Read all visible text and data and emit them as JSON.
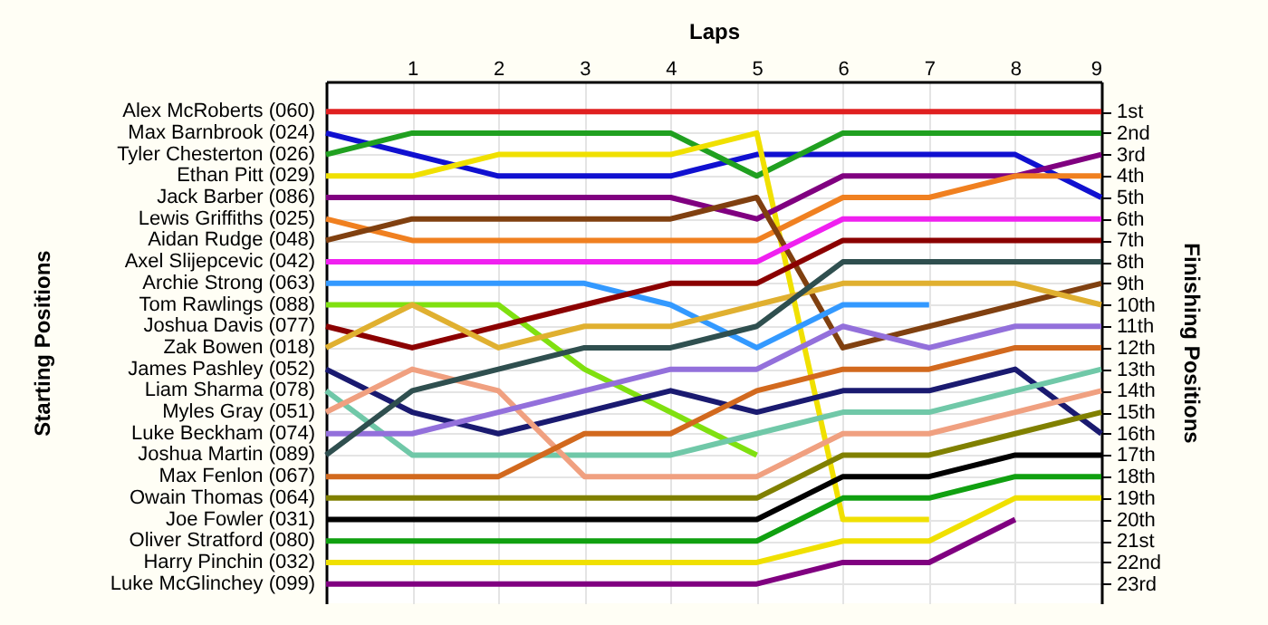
{
  "chart_data": {
    "type": "line",
    "xlabel": "Laps",
    "ylabel": "Finishing Positions",
    "annotations": [
      "Starting Positions"
    ],
    "x": [
      0,
      1,
      2,
      3,
      4,
      5,
      6,
      7,
      8,
      9
    ],
    "xlim": [
      0,
      9
    ],
    "xticks": [
      {
        "value": 0,
        "label": null
      },
      1,
      2,
      3,
      4,
      5,
      6,
      7,
      8,
      9
    ],
    "ylim": [
      23.9,
      -0.4
    ],
    "yticks": [
      {
        "value": 1,
        "label": "1st"
      },
      {
        "value": 2,
        "label": "2nd"
      },
      {
        "value": 3,
        "label": "3rd"
      },
      {
        "value": 4,
        "label": "4th"
      },
      {
        "value": 5,
        "label": "5th"
      },
      {
        "value": 6,
        "label": "6th"
      },
      {
        "value": 7,
        "label": "7th"
      },
      {
        "value": 8,
        "label": "8th"
      },
      {
        "value": 9,
        "label": "9th"
      },
      {
        "value": 10,
        "label": "10th"
      },
      {
        "value": 11,
        "label": "11th"
      },
      {
        "value": 12,
        "label": "12th"
      },
      {
        "value": 13,
        "label": "13th"
      },
      {
        "value": 14,
        "label": "14th"
      },
      {
        "value": 15,
        "label": "15th"
      },
      {
        "value": 16,
        "label": "16th"
      },
      {
        "value": 17,
        "label": "17th"
      },
      {
        "value": 18,
        "label": "18th"
      },
      {
        "value": 19,
        "label": "19th"
      },
      {
        "value": 20,
        "label": "20th"
      },
      {
        "value": 21,
        "label": "21st"
      },
      {
        "value": 22,
        "label": "22nd"
      },
      {
        "value": 23,
        "label": "23rd"
      }
    ],
    "grid": true,
    "marker": "none",
    "line_style": "solid",
    "series": [
      {
        "name": "Alex McRoberts (060)",
        "color": "#e02020",
        "values": [
          1,
          1,
          1,
          1,
          1,
          1,
          1,
          1,
          1,
          1
        ]
      },
      {
        "name": "Max Barnbrook (024)",
        "color": "#1010d0",
        "values": [
          2,
          3,
          4,
          4,
          4,
          3,
          3,
          3,
          3,
          5
        ]
      },
      {
        "name": "Tyler Chesterton (026)",
        "color": "#20a020",
        "values": [
          3,
          2,
          2,
          2,
          2,
          4,
          2,
          2,
          2,
          2
        ]
      },
      {
        "name": "Ethan Pitt (029)",
        "color": "#f0e000",
        "values": [
          4,
          4,
          3,
          3,
          3,
          2,
          20,
          20,
          null,
          null
        ]
      },
      {
        "name": "Jack Barber (086)",
        "color": "#800080",
        "values": [
          5,
          5,
          5,
          5,
          5,
          6,
          4,
          4,
          4,
          3
        ]
      },
      {
        "name": "Lewis Griffiths (025)",
        "color": "#f08020",
        "values": [
          6,
          7,
          7,
          7,
          7,
          7,
          5,
          5,
          4,
          4
        ]
      },
      {
        "name": "Aidan Rudge (048)",
        "color": "#804010",
        "values": [
          7,
          6,
          6,
          6,
          6,
          5,
          12,
          11,
          10,
          9
        ]
      },
      {
        "name": "Axel Slijepcevic (042)",
        "color": "#f020f0",
        "values": [
          8,
          8,
          8,
          8,
          8,
          8,
          6,
          6,
          6,
          6
        ]
      },
      {
        "name": "Archie Strong (063)",
        "color": "#3399ff",
        "values": [
          9,
          9,
          9,
          9,
          10,
          12,
          10,
          10,
          null,
          null
        ]
      },
      {
        "name": "Tom Rawlings (088)",
        "color": "#80e010",
        "values": [
          10,
          10,
          10,
          13,
          15,
          17,
          null,
          null,
          null,
          null
        ]
      },
      {
        "name": "Joshua Davis (077)",
        "color": "#8b0000",
        "values": [
          11,
          12,
          11,
          10,
          9,
          9,
          7,
          7,
          7,
          7
        ]
      },
      {
        "name": "Zak Bowen (018)",
        "color": "#e0b030",
        "values": [
          12,
          10,
          12,
          11,
          11,
          10,
          9,
          9,
          9,
          10
        ]
      },
      {
        "name": "James Pashley (052)",
        "color": "#1a1a70",
        "values": [
          13,
          15,
          16,
          15,
          14,
          15,
          14,
          14,
          13,
          16
        ]
      },
      {
        "name": "Liam Sharma (078)",
        "color": "#70c8a8",
        "values": [
          14,
          17,
          17,
          17,
          17,
          16,
          15,
          15,
          14,
          13
        ]
      },
      {
        "name": "Myles Gray (051)",
        "color": "#f0a080",
        "values": [
          15,
          13,
          14,
          18,
          18,
          18,
          16,
          16,
          15,
          14
        ]
      },
      {
        "name": "Luke Beckham (074)",
        "color": "#9370db",
        "values": [
          16,
          16,
          15,
          14,
          13,
          13,
          11,
          12,
          11,
          11
        ]
      },
      {
        "name": "Joshua Martin (089)",
        "color": "#2f4f4f",
        "values": [
          17,
          14,
          13,
          12,
          12,
          11,
          8,
          8,
          8,
          8
        ]
      },
      {
        "name": "Max Fenlon (067)",
        "color": "#d2691e",
        "values": [
          18,
          18,
          18,
          16,
          16,
          14,
          13,
          13,
          12,
          12
        ]
      },
      {
        "name": "Owain Thomas (064)",
        "color": "#808000",
        "values": [
          19,
          19,
          19,
          19,
          19,
          19,
          17,
          17,
          16,
          15
        ]
      },
      {
        "name": "Joe Fowler (031)",
        "color": "#000000",
        "values": [
          20,
          20,
          20,
          20,
          20,
          20,
          18,
          18,
          17,
          17
        ]
      },
      {
        "name": "Oliver Stratford (080)",
        "color": "#10a010",
        "values": [
          21,
          21,
          21,
          21,
          21,
          21,
          19,
          19,
          18,
          18
        ]
      },
      {
        "name": "Harry Pinchin (032)",
        "color": "#f0e000",
        "values": [
          22,
          22,
          22,
          22,
          22,
          22,
          21,
          21,
          19,
          19
        ]
      },
      {
        "name": "Luke McGlinchey (099)",
        "color": "#800080",
        "values": [
          23,
          23,
          23,
          23,
          23,
          23,
          22,
          22,
          20,
          null
        ]
      }
    ]
  }
}
